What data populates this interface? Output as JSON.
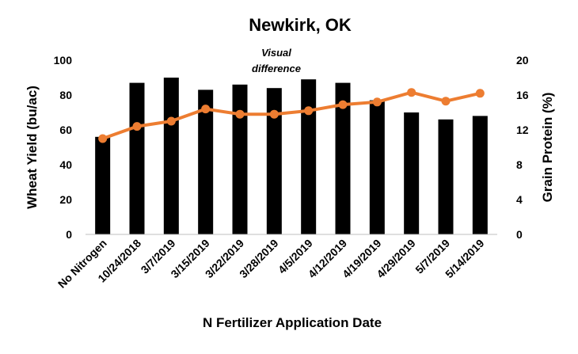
{
  "chart_data": {
    "type": "bar",
    "title": "Newkirk, OK",
    "xlabel": "N Fertilizer Application Date",
    "ylabel": "Wheat Yield (bu/ac)",
    "y2label": "Grain Protein (%)",
    "categories": [
      "No Nitrogen",
      "10/24/2018",
      "3/7/2019",
      "3/15/2019",
      "3/22/2019",
      "3/28/2019",
      "4/5/2019",
      "4/12/2019",
      "4/19/2019",
      "4/29/2019",
      "5/7/2019",
      "5/14/2019"
    ],
    "series": [
      {
        "values": [
          56,
          87,
          90,
          83,
          86,
          84,
          89,
          87,
          77,
          70,
          66,
          68
        ],
        "color": "#000000",
        "type": "bar",
        "axis": "left"
      },
      {
        "values": [
          11.0,
          12.4,
          13.0,
          14.4,
          13.8,
          13.8,
          14.2,
          14.9,
          15.2,
          16.3,
          15.3,
          16.2
        ],
        "color": "#ED7D31",
        "type": "line",
        "axis": "right"
      }
    ],
    "ylim": [
      0,
      100
    ],
    "yticks": [
      0,
      20,
      40,
      60,
      80,
      100
    ],
    "y2lim": [
      0,
      20
    ],
    "y2ticks": [
      0,
      4,
      8,
      12,
      16,
      20
    ],
    "grid": false,
    "annotation": {
      "line1": "Visual",
      "line2": "difference"
    }
  }
}
